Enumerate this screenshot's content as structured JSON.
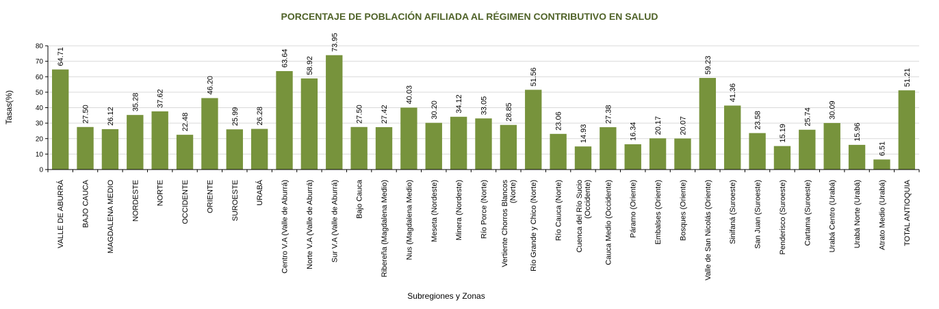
{
  "chart_data": {
    "type": "bar",
    "title": "PORCENTAJE DE POBLACIÓN AFILIADA AL RÉGIMEN CONTRIBUTIVO EN SALUD",
    "xlabel": "Subregiones y Zonas",
    "ylabel": "Tasas(%)",
    "ylim": [
      0,
      80
    ],
    "yticks": [
      "0",
      "10",
      "20",
      "30",
      "40",
      "50",
      "60",
      "70",
      "80"
    ],
    "grid": true,
    "bar_color": "#77933C",
    "title_color": "#4F6228",
    "categories": [
      [
        "VALLE DE ABURRÁ"
      ],
      [
        "BAJO CAUCA"
      ],
      [
        "MAGDALENA MEDIO"
      ],
      [
        "NORDESTE"
      ],
      [
        "NORTE"
      ],
      [
        "OCCIDENTE"
      ],
      [
        "ORIENTE"
      ],
      [
        "SUROESTE"
      ],
      [
        "URABÁ"
      ],
      [
        "Centro V.A (Valle de Aburrá)"
      ],
      [
        "Norte V.A (Valle de Aburrá)"
      ],
      [
        "Sur  V.A (Valle de Aburrá)"
      ],
      [
        "Bajo Cauca"
      ],
      [
        "Ribereña  (Magdalena Medio)"
      ],
      [
        "Nus  (Magdalena Medio)"
      ],
      [
        "Meseta  (Nordeste)"
      ],
      [
        "Minera  (Nordeste)"
      ],
      [
        "Río Porce   (Norte)"
      ],
      [
        "Vertiente Chorros Blancos",
        "(Norte)"
      ],
      [
        "Río Grande y Chico  (Norte)"
      ],
      [
        "Río Cauca  (Norte)"
      ],
      [
        "Cuenca del Río Sucio",
        "(Occidente)"
      ],
      [
        "Cauca Medio  (Occidente)"
      ],
      [
        "Páramo  (Oriente)"
      ],
      [
        "Embalses  (Oriente)"
      ],
      [
        "Bosques  (Oriente)"
      ],
      [
        "Valle de San Nicolás (Oriente)"
      ],
      [
        "Sinifaná  (Suroeste)"
      ],
      [
        "San Juan  (Suroeste)"
      ],
      [
        "Penderisco  (Suroeste)"
      ],
      [
        "Cartama  (Suroeste)"
      ],
      [
        "Urabá Centro  (Urabá)"
      ],
      [
        "Urabá Norte  (Urabá)"
      ],
      [
        "Atrato Medio  (Urabá)"
      ],
      [
        "TOTAL ANTIOQUIA"
      ]
    ],
    "values": [
      64.71,
      27.5,
      26.12,
      35.28,
      37.62,
      22.48,
      46.2,
      25.99,
      26.28,
      63.64,
      58.92,
      73.95,
      27.5,
      27.42,
      40.03,
      30.2,
      34.12,
      33.05,
      28.85,
      51.56,
      23.06,
      14.93,
      27.38,
      16.34,
      20.17,
      20.07,
      59.23,
      41.36,
      23.58,
      15.19,
      25.74,
      30.09,
      15.96,
      6.51,
      51.21
    ],
    "value_labels": [
      "64.71",
      "27.50",
      "26.12",
      "35.28",
      "37.62",
      "22.48",
      "46.20",
      "25.99",
      "26.28",
      "63.64",
      "58.92",
      "73.95",
      "27.50",
      "27.42",
      "40.03",
      "30.20",
      "34.12",
      "33.05",
      "28.85",
      "51.56",
      "23.06",
      "14.93",
      "27.38",
      "16.34",
      "20.17",
      "20.07",
      "59.23",
      "41.36",
      "23.58",
      "15.19",
      "25.74",
      "30.09",
      "15.96",
      "6.51",
      "51.21"
    ]
  }
}
